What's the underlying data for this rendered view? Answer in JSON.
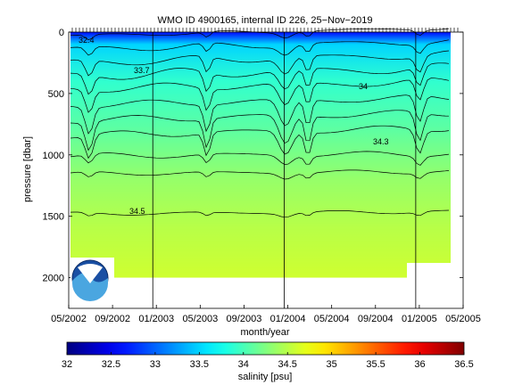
{
  "chart_data": {
    "type": "heatmap",
    "title": "WMO ID 4900165, internal ID 226, 25−Nov−2019",
    "xlabel": "month/year",
    "ylabel": "pressure [dbar]",
    "x_tick_labels": [
      "05/2002",
      "09/2002",
      "01/2003",
      "05/2003",
      "09/2003",
      "01/2004",
      "05/2004",
      "09/2004",
      "01/2005",
      "05/2005"
    ],
    "y_ticks": [
      0,
      500,
      1000,
      1500,
      2000
    ],
    "ylim": [
      0,
      2250
    ],
    "y_reversed": true,
    "year_boundaries": [
      "01/2003",
      "01/2004",
      "01/2005"
    ],
    "colorbar": {
      "label": "salinity [psu]",
      "min": 32,
      "max": 36.5,
      "tick_labels": [
        "32",
        "32.5",
        "33",
        "33.5",
        "34",
        "34.5",
        "35",
        "35.5",
        "36",
        "36.5"
      ],
      "colormap": "jet"
    },
    "contours": [
      {
        "label": "32.4",
        "level": 32.4
      },
      {
        "label": "33.7",
        "level": 33.7
      },
      {
        "label": "34",
        "level": 34
      },
      {
        "label": "34.3",
        "level": 34.3
      },
      {
        "label": "34.5",
        "level": 34.5
      }
    ],
    "profile_period": [
      "05/2002",
      "04/2005"
    ],
    "max_profile_depth_dbar": 2000,
    "surface_salinity_range": [
      32.4,
      33.5
    ],
    "deep_salinity_range": [
      34.5,
      34.6
    ]
  },
  "logo": {
    "text": "NOAA"
  }
}
